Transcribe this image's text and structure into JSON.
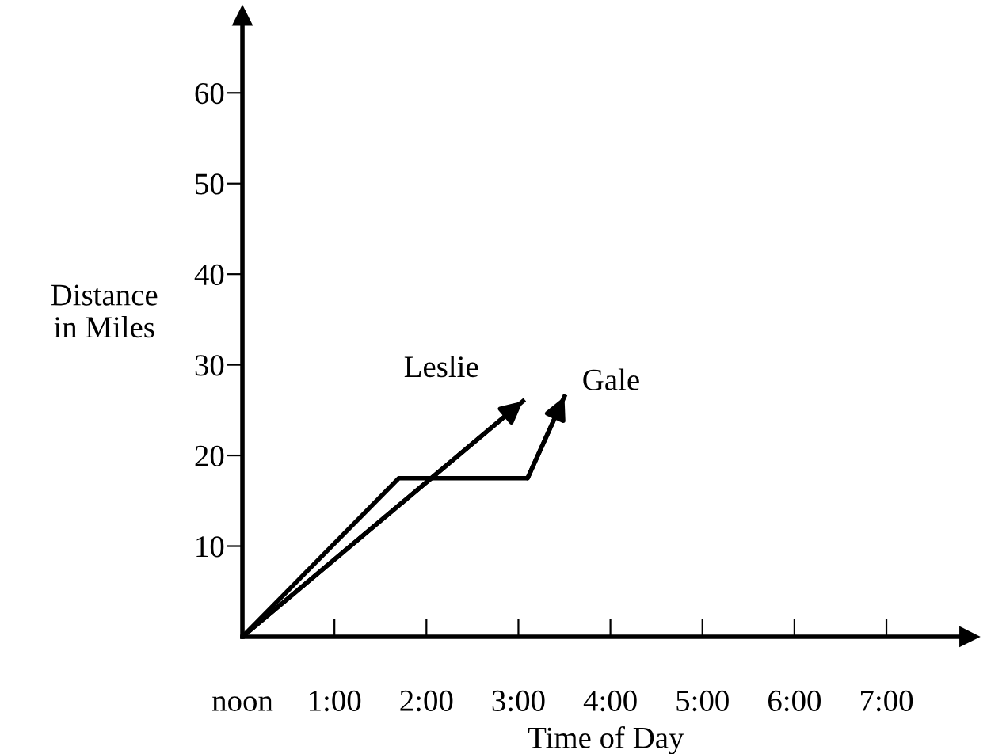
{
  "chart_data": {
    "type": "line",
    "xlabel": "Time of Day",
    "ylabel": "Distance\nin Miles",
    "series": [
      {
        "name": "Leslie",
        "color": "#000000",
        "x": [
          0,
          3.05
        ],
        "values": [
          0,
          26
        ]
      },
      {
        "name": "Gale",
        "color": "#000000",
        "x": [
          0,
          1.7,
          3.1,
          3.5
        ],
        "values": [
          0,
          17.5,
          17.5,
          26.5
        ]
      }
    ],
    "xlim": [
      0,
      7.9
    ],
    "ylim": [
      0,
      68.5
    ],
    "xticks": [
      {
        "value": 0,
        "label": "noon"
      },
      {
        "value": 1,
        "label": "1:00"
      },
      {
        "value": 2,
        "label": "2:00"
      },
      {
        "value": 3,
        "label": "3:00"
      },
      {
        "value": 4,
        "label": "4:00"
      },
      {
        "value": 5,
        "label": "5:00"
      },
      {
        "value": 6,
        "label": "6:00"
      },
      {
        "value": 7,
        "label": "7:00"
      }
    ],
    "yticks": [
      10,
      20,
      30,
      40,
      50,
      60
    ],
    "grid": false,
    "legend": false,
    "marker": "none",
    "line_style": "solid"
  }
}
